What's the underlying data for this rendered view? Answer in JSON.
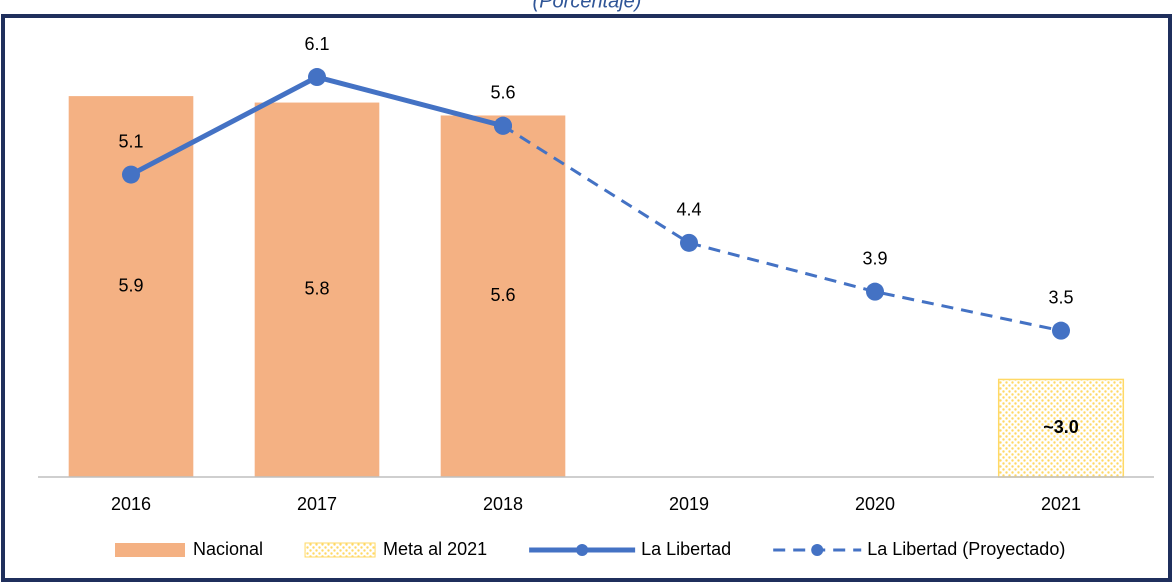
{
  "chart_data": {
    "type": "bar-line",
    "subtitle": "(Porcentaje)",
    "categories": [
      "2016",
      "2017",
      "2018",
      "2019",
      "2020",
      "2021"
    ],
    "ylim": [
      0,
      6.8
    ],
    "y2lim": [
      2,
      6.5
    ],
    "series": [
      {
        "name": "Nacional",
        "type": "bar",
        "color": "#f4b183",
        "values": [
          5.9,
          5.8,
          5.6,
          null,
          null,
          null
        ]
      },
      {
        "name": "Meta al 2021",
        "type": "bar",
        "axis": "y2",
        "color": "#ffd966",
        "pattern": true,
        "values": [
          null,
          null,
          null,
          null,
          null,
          3.0
        ],
        "value_labels": [
          null,
          null,
          null,
          null,
          null,
          "~3.0"
        ]
      },
      {
        "name": "La Libertad",
        "type": "line",
        "axis": "y2",
        "color": "#4472c4",
        "values": [
          5.1,
          6.1,
          5.6,
          null,
          null,
          null
        ]
      },
      {
        "name": "La Libertad (Proyectado)",
        "type": "line",
        "axis": "y2",
        "color": "#4472c4",
        "dashed": true,
        "values": [
          null,
          null,
          5.6,
          4.4,
          3.9,
          3.5
        ]
      }
    ]
  }
}
